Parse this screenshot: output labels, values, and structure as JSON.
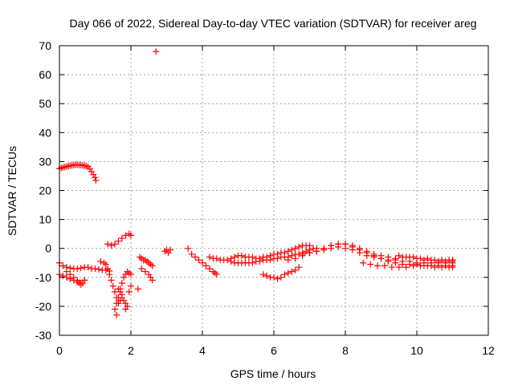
{
  "chart_data": {
    "type": "scatter",
    "title": "Day 066 of 2022, Sidereal Day-to-day VTEC variation (SDTVAR) for receiver areg",
    "xlabel": "GPS time / hours",
    "ylabel": "SDTVAR / TECUs",
    "xlim": [
      0,
      12
    ],
    "ylim": [
      -30,
      70
    ],
    "xticks": [
      0,
      2,
      4,
      6,
      8,
      10,
      12
    ],
    "yticks": [
      -30,
      -20,
      -10,
      0,
      10,
      20,
      30,
      40,
      50,
      60,
      70
    ],
    "grid": true,
    "marker": "+",
    "series": [
      {
        "name": "SDTVAR",
        "color": "#ff0000",
        "x": [
          0.0,
          0.1,
          0.2,
          0.3,
          0.4,
          0.5,
          0.6,
          0.7,
          0.8,
          0.85,
          0.9,
          0.95,
          1.0,
          1.02,
          0.05,
          0.15,
          0.25,
          0.35,
          0.45,
          0.55,
          0.65,
          0.75,
          0.0,
          0.1,
          0.2,
          0.3,
          0.4,
          0.5,
          0.6,
          0.7,
          0.8,
          0.9,
          1.0,
          1.1,
          1.2,
          1.3,
          1.4,
          0.0,
          0.1,
          0.2,
          0.3,
          0.4,
          0.5,
          0.6,
          0.7,
          0.2,
          0.3,
          0.4,
          0.5,
          0.55,
          0.6,
          0.65,
          0.7,
          1.15,
          1.25,
          1.3,
          1.35,
          1.4,
          1.45,
          1.5,
          1.55,
          1.6,
          1.65,
          1.55,
          1.6,
          1.7,
          1.6,
          1.65,
          1.7,
          1.75,
          1.8,
          1.85,
          1.9,
          1.95,
          2.0,
          1.65,
          1.7,
          1.75,
          1.8,
          1.85,
          1.9,
          1.95,
          2.0,
          1.75,
          1.85,
          1.35,
          1.45,
          1.55,
          1.65,
          1.75,
          1.85,
          1.95,
          2.0,
          2.25,
          2.3,
          2.35,
          2.4,
          2.45,
          2.5,
          2.55,
          2.6,
          2.3,
          2.4,
          2.5,
          2.55,
          2.6,
          2.2,
          2.7,
          2.95,
          3.0,
          3.05,
          3.1,
          3.6,
          3.7,
          3.8,
          3.9,
          4.0,
          4.1,
          4.2,
          4.3,
          4.35,
          4.4,
          4.2,
          4.3,
          4.4,
          4.5,
          4.6,
          4.7,
          4.8,
          4.9,
          5.0,
          5.1,
          5.2,
          5.3,
          5.4,
          5.5,
          5.6,
          5.7,
          5.8,
          5.9,
          6.0,
          6.1,
          6.2,
          6.3,
          6.4,
          6.5,
          6.6,
          6.7,
          6.8,
          6.9,
          7.0,
          4.8,
          4.9,
          5.0,
          5.1,
          5.2,
          5.3,
          5.4,
          5.5,
          5.6,
          5.7,
          5.8,
          5.9,
          6.0,
          6.1,
          6.2,
          6.3,
          6.4,
          6.5,
          6.6,
          6.7,
          6.8,
          6.9,
          7.0,
          7.1,
          7.2,
          5.7,
          5.8,
          5.9,
          6.0,
          6.1,
          6.2,
          6.3,
          6.4,
          6.5,
          6.6,
          6.7,
          6.4,
          6.6,
          6.8,
          7.0,
          7.2,
          7.4,
          7.6,
          7.8,
          8.0,
          8.2,
          8.4,
          8.6,
          8.8,
          9.0,
          9.2,
          9.4,
          9.6,
          9.8,
          10.0,
          10.2,
          10.4,
          10.6,
          10.8,
          11.0,
          6.8,
          7.0,
          7.2,
          7.4,
          7.6,
          7.8,
          8.0,
          8.2,
          8.4,
          8.6,
          8.8,
          9.0,
          9.2,
          9.4,
          9.6,
          9.8,
          10.0,
          10.2,
          10.4,
          10.6,
          10.8,
          11.0,
          7.0,
          7.2,
          7.4,
          7.6,
          7.8,
          8.0,
          8.2,
          8.4,
          8.6,
          8.8,
          9.0,
          9.2,
          9.4,
          9.6,
          9.8,
          10.0,
          10.2,
          10.4,
          10.6,
          10.8,
          11.0,
          8.5,
          8.7,
          8.9,
          9.1,
          9.3,
          9.5,
          9.7,
          9.9,
          10.1,
          10.3,
          10.5,
          10.7,
          10.9,
          11.0,
          9.5,
          9.7,
          9.9,
          10.1,
          10.3,
          10.5,
          10.7,
          10.9,
          11.0
        ],
        "y": [
          27.5,
          28.0,
          28.3,
          28.6,
          28.8,
          28.9,
          28.8,
          28.6,
          28.2,
          27.5,
          26.5,
          25.5,
          24.5,
          23.5,
          27.8,
          28.1,
          28.4,
          28.7,
          28.9,
          28.8,
          28.7,
          28.5,
          -5,
          -6,
          -6.5,
          -6.8,
          -7,
          -7,
          -6.8,
          -6.5,
          -6.5,
          -7,
          -7,
          -7.2,
          -7.5,
          -7.5,
          -7.8,
          -9,
          -9.5,
          -10,
          -10.5,
          -11,
          -11.5,
          -12,
          -11,
          -8,
          -9,
          -10,
          -11,
          -12,
          -12.5,
          -12,
          -11,
          -4.5,
          -5,
          -5.5,
          -7,
          -9,
          -11,
          -13,
          -15,
          -17,
          -19,
          -21,
          -23,
          -18,
          -19,
          -17,
          -14,
          -12,
          -10,
          -9,
          -8,
          -8.5,
          -9,
          -14,
          -15,
          -16,
          -18,
          -19,
          -20,
          -15,
          -13,
          -17,
          -21,
          1.5,
          1.0,
          1.5,
          2.5,
          3.5,
          4.5,
          5.0,
          4.5,
          -3,
          -3.5,
          -4,
          -4,
          -4.5,
          -5,
          -5.5,
          -6,
          -7,
          -8,
          -9,
          -10,
          -11,
          -14,
          68,
          -1,
          -0.5,
          -1.5,
          -0.5,
          0,
          -2,
          -3,
          -4,
          -5,
          -6,
          -7,
          -8,
          -8.5,
          -9,
          -3,
          -3.5,
          -3.5,
          -4,
          -4,
          -4,
          -3.5,
          -3,
          -2.5,
          -2.5,
          -3,
          -3,
          -3,
          -3.5,
          -3.5,
          -3,
          -3,
          -2.5,
          -2,
          -2,
          -1.5,
          -1.5,
          -1,
          -0.5,
          0,
          0.5,
          1,
          1,
          1,
          -4.5,
          -5,
          -5,
          -5,
          -5,
          -5,
          -5,
          -4.5,
          -4.5,
          -4,
          -4,
          -4,
          -3.5,
          -3.5,
          -3,
          -3,
          -3,
          -2.5,
          -2,
          -2,
          -1.5,
          -1,
          -0.5,
          0,
          0,
          -9,
          -9.5,
          -10,
          -10,
          -10.5,
          -10,
          -9,
          -8.5,
          -8,
          -7.5,
          -6.5,
          -4,
          -3.5,
          -2.5,
          -1.5,
          -1,
          -0.5,
          0,
          0.5,
          0,
          -0.5,
          -1.5,
          -2.5,
          -3,
          -3.5,
          -4,
          -4,
          -4.5,
          -4.5,
          -5,
          -5,
          -5,
          -5,
          -5,
          -5,
          -2,
          -1.5,
          -1,
          0,
          1,
          1.5,
          1.5,
          1,
          0,
          -1,
          -2,
          -2.5,
          -3,
          -3.5,
          -3,
          -3,
          -3.5,
          -4,
          -4,
          -4.5,
          -4.5,
          -4.5,
          -1.5,
          -1,
          0,
          1,
          1.5,
          1.5,
          0.5,
          -0.5,
          -1.5,
          -2.5,
          -3.5,
          -4.5,
          -5,
          -5.5,
          -5.5,
          -5.5,
          -6,
          -6,
          -6,
          -6,
          -6,
          -5,
          -5.5,
          -6,
          -6,
          -6.5,
          -6.5,
          -6.5,
          -6,
          -6,
          -6,
          -6.5,
          -6.5,
          -6.5,
          -6.5,
          -2.5,
          -3,
          -3,
          -3.5,
          -3.5,
          -4,
          -4,
          -4,
          -4
        ]
      }
    ]
  }
}
